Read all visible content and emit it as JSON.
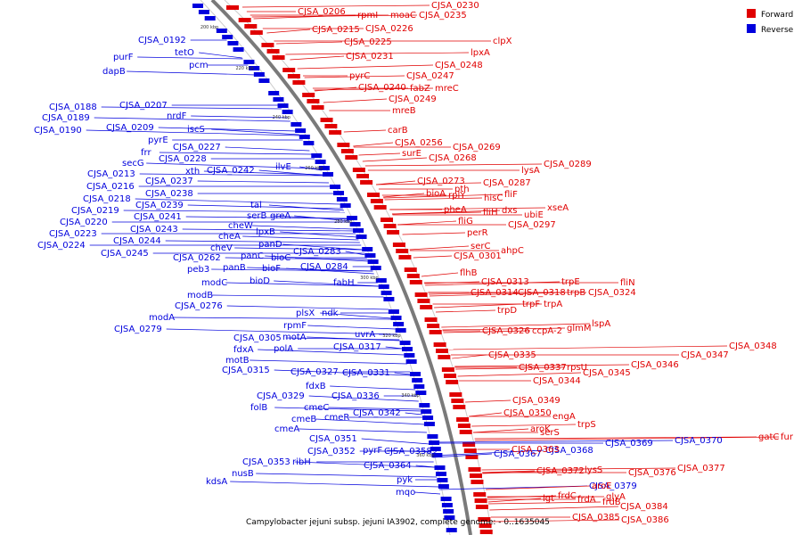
{
  "caption": "Campylobacter jejuni subsp. jejuni IA3902, complete genome: - 0..1635045",
  "legend": [
    {
      "label": "Forward",
      "color": "#e00000"
    },
    {
      "label": "Reverse",
      "color": "#0000dd"
    }
  ],
  "ticks": [
    "200 kbp",
    "220 kbp",
    "240 kbp",
    "260 kbp",
    "280 kbp",
    "300 kbp",
    "320 kbp",
    "340 kbp",
    "360 kbp"
  ],
  "reverse_labels": [
    "CJSA_0192",
    "purF",
    "dapB",
    "tetO",
    "pcm",
    "CJSA_0188",
    "CJSA_0189",
    "CJSA_0190",
    "CJSA_0207",
    "nrdF",
    "CJSA_0209",
    "iscS",
    "pyrE",
    "frr",
    "CJSA_0227",
    "secG",
    "CJSA_0228",
    "CJSA_0213",
    "xth",
    "CJSA_0242",
    "CJSA_0216",
    "CJSA_0237",
    "ilvE",
    "CJSA_0218",
    "CJSA_0238",
    "CJSA_0219",
    "CJSA_0239",
    "tal",
    "CJSA_0220",
    "CJSA_0241",
    "serB",
    "greA",
    "CJSA_0223",
    "CJSA_0243",
    "cheW",
    "lpxB",
    "CJSA_0224",
    "CJSA_0244",
    "cheA",
    "panD",
    "CJSA_0245",
    "cheV",
    "CJSA_0283",
    "panC",
    "bioC",
    "CJSA_0262",
    "panB",
    "bioF",
    "CJSA_0284",
    "peb3",
    "modC",
    "bioD",
    "fabH",
    "modB",
    "CJSA_0276",
    "plsX",
    "ndk",
    "modA",
    "rpmF",
    "CJSA_0279",
    "uvrA",
    "CJSA_0305",
    "motA",
    "fdxA",
    "polA",
    "CJSA_0317",
    "motB",
    "CJSA_0315",
    "CJSA_0327",
    "CJSA_0331",
    "fdxB",
    "CJSA_0329",
    "CJSA_0336",
    "cmeC",
    "folB",
    "cmeB",
    "cmeR",
    "CJSA_0342",
    "cmeA",
    "CJSA_0351",
    "CJSA_0352",
    "pyrF",
    "CJSA_0358",
    "CJSA_0353",
    "ribH",
    "CJSA_0364",
    "nusB",
    "kdsA",
    "pyk",
    "mqo",
    "CJSA_0367",
    "CJSA_0368",
    "CJSA_0369",
    "CJSA_0370",
    "CJSA_0379"
  ],
  "forward_labels": [
    "CJSA_0206",
    "CJSA_0230",
    "rpmI",
    "moaC",
    "CJSA_0235",
    "CJSA_0215",
    "CJSA_0226",
    "CJSA_0225",
    "CJSA_0231",
    "clpX",
    "lpxA",
    "CJSA_0248",
    "pyrC",
    "CJSA_0247",
    "CJSA_0240",
    "fabZ",
    "mreC",
    "CJSA_0249",
    "mreB",
    "carB",
    "CJSA_0256",
    "CJSA_0269",
    "surE",
    "CJSA_0268",
    "lysA",
    "CJSA_0289",
    "CJSA_0273",
    "pth",
    "CJSA_0287",
    "bioA",
    "rplY",
    "hisC",
    "fliF",
    "pheA",
    "fliH",
    "dxs",
    "ubiE",
    "xseA",
    "fliG",
    "CJSA_0297",
    "perR",
    "serC",
    "ahpC",
    "CJSA_0301",
    "flhB",
    "fliN",
    "CJSA_0313",
    "trpE",
    "CJSA_0314",
    "CJSA_0318",
    "trpB",
    "CJSA_0324",
    "trpD",
    "trpF",
    "trpA",
    "glmM",
    "lspA",
    "CJSA_0326",
    "ccpA-2",
    "CJSA_0348",
    "CJSA_0347",
    "CJSA_0346",
    "CJSA_0335",
    "CJSA_0337",
    "rpsU",
    "CJSA_0345",
    "CJSA_0344",
    "CJSA_0349",
    "CJSA_0350",
    "engA",
    "trpS",
    "aroK",
    "serS",
    "gatC",
    "fur",
    "CJSA_0363",
    "CJSA_0372",
    "lysS",
    "CJSA_0376",
    "CJSA_0377",
    "aroE",
    "glyA",
    "frdC",
    "lgt",
    "frdA",
    "frdB",
    "CJSA_0384",
    "CJSA_0385",
    "CJSA_0386"
  ]
}
